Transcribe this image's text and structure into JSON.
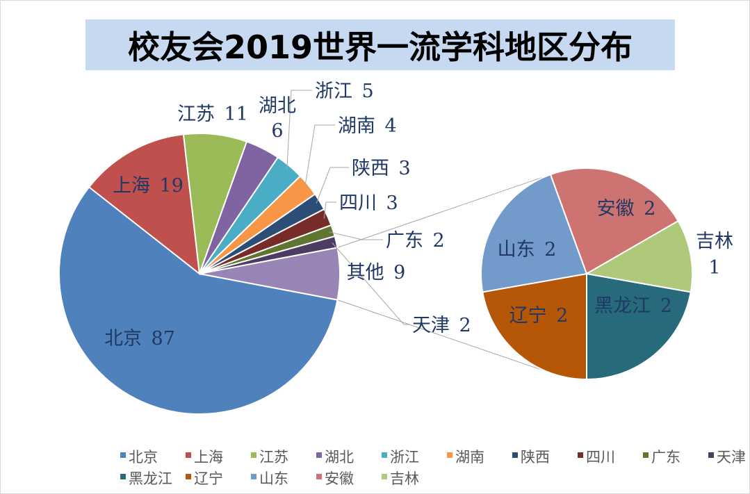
{
  "chart_data": {
    "type": "pie",
    "subtype": "pie-of-pie",
    "title": "校友会2019世界一流学科地区分布",
    "main_pie": {
      "slices": [
        {
          "name": "北京",
          "value": 87,
          "color": "#4f81bd"
        },
        {
          "name": "上海",
          "value": 19,
          "color": "#c0504d"
        },
        {
          "name": "江苏",
          "value": 11,
          "color": "#9bbb59"
        },
        {
          "name": "湖北",
          "value": 6,
          "color": "#8064a2"
        },
        {
          "name": "浙江",
          "value": 5,
          "color": "#4bacc6"
        },
        {
          "name": "湖南",
          "value": 4,
          "color": "#f79646"
        },
        {
          "name": "陕西",
          "value": 3,
          "color": "#2c4d75"
        },
        {
          "name": "四川",
          "value": 3,
          "color": "#772c2a"
        },
        {
          "name": "广东",
          "value": 2,
          "color": "#5f7530"
        },
        {
          "name": "天津",
          "value": 2,
          "color": "#4d3b62"
        },
        {
          "name": "其他",
          "value": 9,
          "color": "#9985b5"
        }
      ]
    },
    "secondary_pie": {
      "parent": "其他",
      "slices": [
        {
          "name": "黑龙江",
          "value": 2,
          "color": "#276a7c"
        },
        {
          "name": "辽宁",
          "value": 2,
          "color": "#b65708"
        },
        {
          "name": "山东",
          "value": 2,
          "color": "#729aca"
        },
        {
          "name": "安徽",
          "value": 2,
          "color": "#cd7371"
        },
        {
          "name": "吉林",
          "value": 1,
          "color": "#afc97a"
        }
      ]
    },
    "data_labels": [
      {
        "name": "北京",
        "value": "87"
      },
      {
        "name": "上海",
        "value": "19"
      },
      {
        "name": "江苏",
        "value": "11"
      },
      {
        "name": "湖北",
        "value": "6"
      },
      {
        "name": "浙江",
        "value": "5"
      },
      {
        "name": "湖南",
        "value": "4"
      },
      {
        "name": "陕西",
        "value": "3"
      },
      {
        "name": "四川",
        "value": "3"
      },
      {
        "name": "广东",
        "value": "2"
      },
      {
        "name": "天津",
        "value": "2"
      },
      {
        "name": "其他",
        "value": "9"
      },
      {
        "name": "山东",
        "value": "2"
      },
      {
        "name": "安徽",
        "value": "2"
      },
      {
        "name": "吉林",
        "value": "1"
      },
      {
        "name": "黑龙江",
        "value": "2"
      },
      {
        "name": "辽宁",
        "value": "2"
      }
    ],
    "legend": {
      "position": "bottom",
      "entries": [
        {
          "name": "北京",
          "color": "#4f81bd"
        },
        {
          "name": "上海",
          "color": "#c0504d"
        },
        {
          "name": "江苏",
          "color": "#9bbb59"
        },
        {
          "name": "湖北",
          "color": "#8064a2"
        },
        {
          "name": "浙江",
          "color": "#4bacc6"
        },
        {
          "name": "湖南",
          "color": "#f79646"
        },
        {
          "name": "陕西",
          "color": "#2c4d75"
        },
        {
          "name": "四川",
          "color": "#772c2a"
        },
        {
          "name": "广东",
          "color": "#5f7530"
        },
        {
          "name": "天津",
          "color": "#4d3b62"
        },
        {
          "name": "黑龙江",
          "color": "#276a7c"
        },
        {
          "name": "辽宁",
          "color": "#b65708"
        },
        {
          "name": "山东",
          "color": "#729aca"
        },
        {
          "name": "安徽",
          "color": "#cd7371"
        },
        {
          "name": "吉林",
          "color": "#afc97a"
        }
      ]
    },
    "title_background": "#c6d9f1"
  }
}
